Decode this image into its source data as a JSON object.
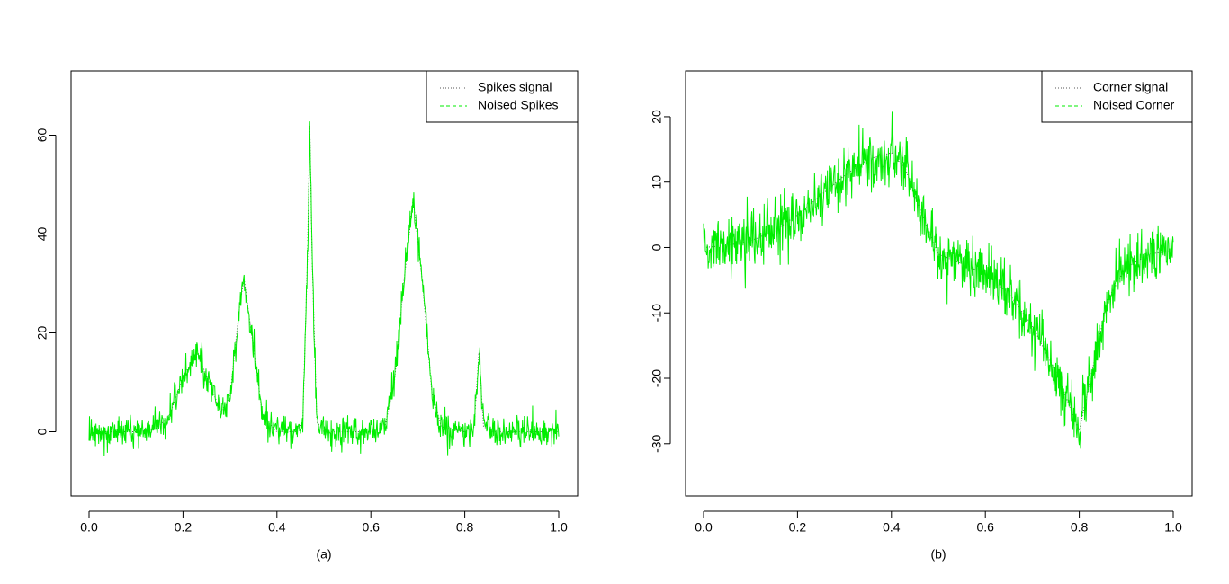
{
  "chart_data": [
    {
      "type": "line",
      "caption": "(a)",
      "xlim": [
        0.0,
        1.0
      ],
      "ylim": [
        -13,
        73
      ],
      "xticks": [
        "0.0",
        "0.2",
        "0.4",
        "0.6",
        "0.8",
        "1.0"
      ],
      "yticks": [
        "0",
        "20",
        "40",
        "60"
      ],
      "legend_position": "top-right",
      "series": [
        {
          "name": "Spikes signal",
          "style": "dotted",
          "color": "#555555",
          "x": [
            0.0,
            0.05,
            0.1,
            0.14,
            0.17,
            0.2,
            0.23,
            0.26,
            0.28,
            0.3,
            0.32,
            0.33,
            0.35,
            0.37,
            0.4,
            0.44,
            0.455,
            0.465,
            0.47,
            0.475,
            0.485,
            0.5,
            0.55,
            0.6,
            0.63,
            0.65,
            0.67,
            0.69,
            0.71,
            0.73,
            0.75,
            0.8,
            0.82,
            0.83,
            0.84,
            0.86,
            0.9,
            1.0
          ],
          "y": [
            0,
            0,
            0,
            0.5,
            3,
            11,
            16,
            9,
            4,
            7,
            25,
            31,
            17,
            3,
            0,
            0,
            2,
            35,
            62,
            35,
            2,
            0,
            0,
            0,
            1,
            10,
            30,
            47,
            30,
            8,
            1,
            0,
            1,
            16,
            1,
            0,
            0,
            0
          ]
        },
        {
          "name": "Noised Spikes",
          "style": "dashed",
          "color": "#00ee00",
          "noise_sd": 1.6,
          "x": [
            0.0,
            0.05,
            0.1,
            0.14,
            0.17,
            0.2,
            0.23,
            0.26,
            0.28,
            0.3,
            0.32,
            0.33,
            0.35,
            0.37,
            0.4,
            0.44,
            0.455,
            0.465,
            0.47,
            0.475,
            0.485,
            0.5,
            0.55,
            0.6,
            0.63,
            0.65,
            0.67,
            0.69,
            0.71,
            0.73,
            0.75,
            0.8,
            0.82,
            0.83,
            0.84,
            0.86,
            0.9,
            1.0
          ],
          "y": [
            0,
            0,
            0,
            0.5,
            3,
            11,
            16,
            9,
            4,
            7,
            25,
            31,
            17,
            3,
            0,
            0,
            2,
            35,
            62,
            35,
            2,
            0,
            0,
            0,
            1,
            10,
            30,
            47,
            30,
            8,
            1,
            0,
            1,
            16,
            1,
            0,
            0,
            0
          ]
        }
      ]
    },
    {
      "type": "line",
      "caption": "(b)",
      "xlim": [
        0.0,
        1.0
      ],
      "ylim": [
        -38,
        27
      ],
      "xticks": [
        "0.0",
        "0.2",
        "0.4",
        "0.6",
        "0.8",
        "1.0"
      ],
      "yticks": [
        "-30",
        "-20",
        "-10",
        "0",
        "10",
        "20"
      ],
      "legend_position": "top-right",
      "series": [
        {
          "name": "Corner signal",
          "style": "dotted",
          "color": "#555555",
          "x": [
            0.0,
            0.05,
            0.1,
            0.15,
            0.2,
            0.25,
            0.3,
            0.35,
            0.4,
            0.43,
            0.46,
            0.5,
            0.55,
            0.6,
            0.65,
            0.7,
            0.75,
            0.8,
            0.83,
            0.86,
            0.9,
            0.95,
            1.0
          ],
          "y": [
            0,
            0.3,
            1,
            2.5,
            5,
            8,
            11,
            13.5,
            14.5,
            12,
            6,
            -1,
            -2.5,
            -4,
            -7,
            -12,
            -19,
            -28,
            -18,
            -8,
            -3,
            -1,
            -0.5
          ]
        },
        {
          "name": "Noised Corner",
          "style": "dashed",
          "color": "#00ee00",
          "noise_sd": 2.2,
          "x": [
            0.0,
            0.05,
            0.1,
            0.15,
            0.2,
            0.25,
            0.3,
            0.35,
            0.4,
            0.43,
            0.46,
            0.5,
            0.55,
            0.6,
            0.65,
            0.7,
            0.75,
            0.8,
            0.83,
            0.86,
            0.9,
            0.95,
            1.0
          ],
          "y": [
            0,
            0.3,
            1,
            2.5,
            5,
            8,
            11,
            13.5,
            14.5,
            12,
            6,
            -1,
            -2.5,
            -4,
            -7,
            -12,
            -19,
            -28,
            -18,
            -8,
            -3,
            -1,
            -0.5
          ]
        }
      ]
    }
  ]
}
